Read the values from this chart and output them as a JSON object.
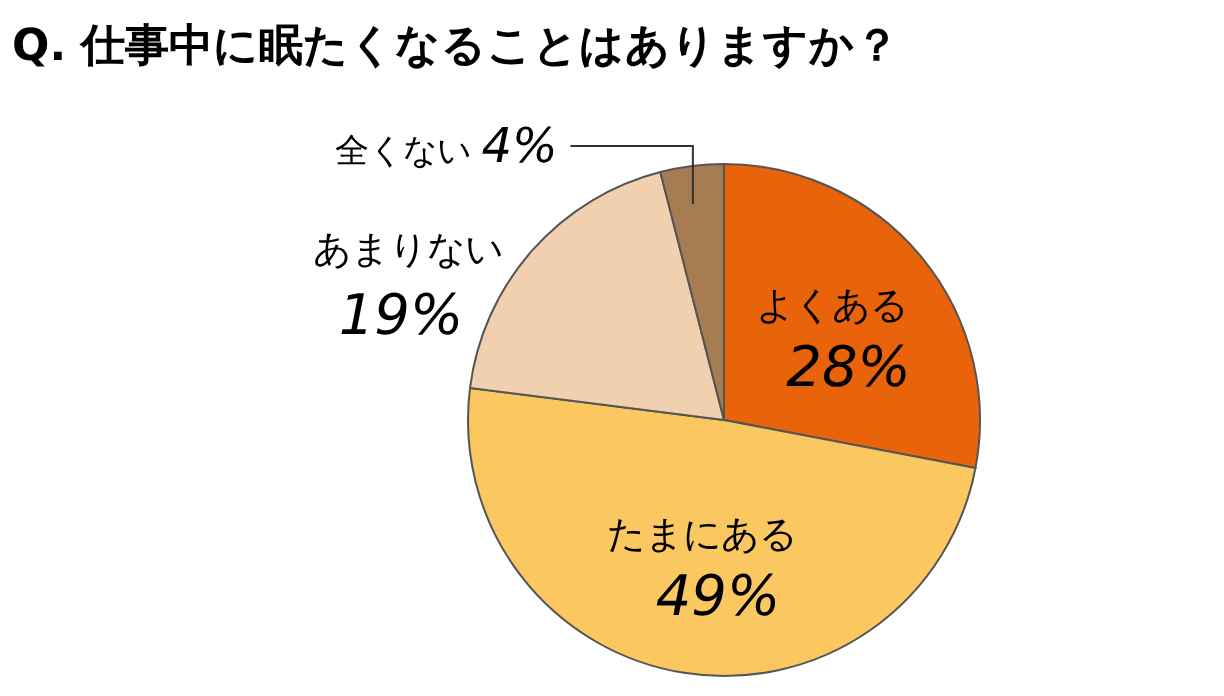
{
  "chart_data": {
    "type": "pie",
    "title": "Q. 仕事中に眠たくなることはありますか？",
    "categories": [
      "よくある",
      "たまにある",
      "あまりない",
      "全くない"
    ],
    "values": [
      28,
      49,
      19,
      4
    ],
    "colors": [
      "#e8630a",
      "#fbc760",
      "#f1d0b0",
      "#a67c52"
    ],
    "value_labels": [
      "28%",
      "49%",
      "19%",
      "4%"
    ]
  }
}
